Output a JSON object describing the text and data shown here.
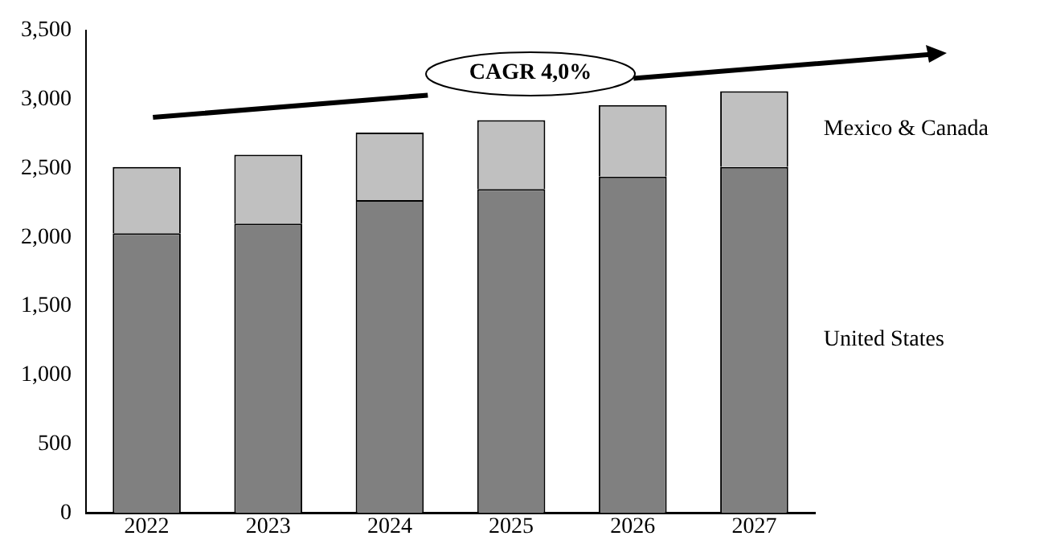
{
  "chart_data": {
    "type": "bar",
    "stacked": true,
    "legend": false,
    "categories": [
      "2022",
      "2023",
      "2024",
      "2025",
      "2026",
      "2027"
    ],
    "series": [
      {
        "name": "United States",
        "color": "#808080",
        "values": [
          2030,
          2100,
          2270,
          2350,
          2440,
          2510
        ]
      },
      {
        "name": "Mexico & Canada",
        "color": "#c0c0c0",
        "values": [
          480,
          500,
          490,
          500,
          520,
          550
        ]
      }
    ],
    "ylim": [
      0,
      3500
    ],
    "yticks": [
      {
        "value": 0,
        "label": "0"
      },
      {
        "value": 500,
        "label": "500"
      },
      {
        "value": 1000,
        "label": "1,000"
      },
      {
        "value": 1500,
        "label": "1,500"
      },
      {
        "value": 2000,
        "label": "2,000"
      },
      {
        "value": 2500,
        "label": "2,500"
      },
      {
        "value": 3000,
        "label": "3,000"
      },
      {
        "value": 3500,
        "label": "3,500"
      }
    ],
    "grid": false,
    "annotations": [
      "CAGR 4,0%"
    ]
  }
}
